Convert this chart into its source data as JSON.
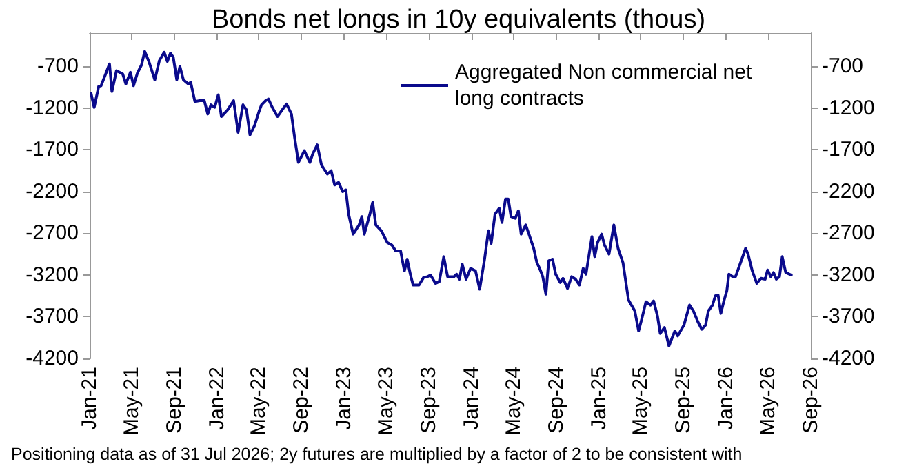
{
  "chart_data": {
    "type": "line",
    "title": "Bonds net longs in 10y equivalents (thous)",
    "annotations": [
      "Positioning data as of 31 Jul 2026; 2y futures are multiplied by a factor of 2 to be consistent with"
    ],
    "x": [
      "2021-01-05",
      "2021-01-14",
      "2021-01-27",
      "2021-02-03",
      "2021-02-17",
      "2021-02-27",
      "2021-03-06",
      "2021-03-19",
      "2021-04-06",
      "2021-04-15",
      "2021-04-28",
      "2021-05-07",
      "2021-05-18",
      "2021-05-30",
      "2021-06-08",
      "2021-06-20",
      "2021-07-07",
      "2021-07-20",
      "2021-08-03",
      "2021-08-12",
      "2021-08-21",
      "2021-08-29",
      "2021-09-08",
      "2021-09-17",
      "2021-09-27",
      "2021-10-11",
      "2021-10-18",
      "2021-10-30",
      "2021-11-13",
      "2021-11-26",
      "2021-12-06",
      "2021-12-15",
      "2021-12-26",
      "2022-01-05",
      "2022-01-14",
      "2022-02-01",
      "2022-02-18",
      "2022-03-03",
      "2022-03-17",
      "2022-03-27",
      "2022-04-06",
      "2022-04-19",
      "2022-05-02",
      "2022-05-09",
      "2022-05-21",
      "2022-05-29",
      "2022-06-09",
      "2022-06-24",
      "2022-07-11",
      "2022-07-20",
      "2022-08-03",
      "2022-08-12",
      "2022-08-23",
      "2022-09-09",
      "2022-09-25",
      "2022-10-03",
      "2022-10-16",
      "2022-10-28",
      "2022-11-14",
      "2022-11-25",
      "2022-12-05",
      "2022-12-16",
      "2022-12-28",
      "2023-01-06",
      "2023-01-14",
      "2023-01-27",
      "2023-02-13",
      "2023-02-21",
      "2023-02-28",
      "2023-03-16",
      "2023-03-24",
      "2023-04-02",
      "2023-04-18",
      "2023-05-05",
      "2023-05-18",
      "2023-05-29",
      "2023-06-12",
      "2023-06-23",
      "2023-07-01",
      "2023-07-10",
      "2023-07-18",
      "2023-08-04",
      "2023-08-17",
      "2023-08-28",
      "2023-09-06",
      "2023-09-20",
      "2023-10-01",
      "2023-10-14",
      "2023-10-25",
      "2023-11-12",
      "2023-11-20",
      "2023-11-28",
      "2023-12-06",
      "2023-12-17",
      "2023-12-30",
      "2024-01-13",
      "2024-01-25",
      "2024-02-08",
      "2024-02-19",
      "2024-02-27",
      "2024-03-09",
      "2024-03-21",
      "2024-03-29",
      "2024-04-08",
      "2024-04-16",
      "2024-04-24",
      "2024-05-06",
      "2024-05-15",
      "2024-05-23",
      "2024-06-05",
      "2024-06-16",
      "2024-06-28",
      "2024-07-07",
      "2024-07-15",
      "2024-07-24",
      "2024-08-02",
      "2024-08-10",
      "2024-08-21",
      "2024-08-30",
      "2024-09-12",
      "2024-09-20",
      "2024-10-03",
      "2024-10-15",
      "2024-10-26",
      "2024-11-06",
      "2024-11-17",
      "2024-11-25",
      "2024-12-12",
      "2024-12-20",
      "2024-12-28",
      "2025-01-09",
      "2025-01-17",
      "2025-01-30",
      "2025-02-13",
      "2025-02-25",
      "2025-03-11",
      "2025-03-27",
      "2025-04-14",
      "2025-04-25",
      "2025-05-05",
      "2025-05-16",
      "2025-05-29",
      "2025-06-07",
      "2025-06-18",
      "2025-06-26",
      "2025-07-08",
      "2025-07-21",
      "2025-08-07",
      "2025-08-15",
      "2025-09-02",
      "2025-09-18",
      "2025-09-29",
      "2025-10-12",
      "2025-10-23",
      "2025-11-03",
      "2025-11-11",
      "2025-11-23",
      "2025-12-01",
      "2025-12-09",
      "2025-12-17",
      "2025-12-25",
      "2026-01-03",
      "2026-01-09",
      "2026-01-20",
      "2026-01-28",
      "2026-02-09",
      "2026-02-26",
      "2026-03-05",
      "2026-03-17",
      "2026-03-30",
      "2026-04-11",
      "2026-04-23",
      "2026-04-30",
      "2026-05-09",
      "2026-05-17",
      "2026-05-25",
      "2026-06-03",
      "2026-06-11",
      "2026-06-21",
      "2026-07-07"
    ],
    "series": [
      {
        "name": "Aggregated Non commercial net long contracts",
        "color": "#0a0a8c",
        "values": [
          -1020,
          -1190,
          -940,
          -930,
          -780,
          -670,
          -1000,
          -750,
          -790,
          -910,
          -770,
          -930,
          -780,
          -680,
          -520,
          -640,
          -860,
          -630,
          -530,
          -640,
          -540,
          -590,
          -860,
          -700,
          -860,
          -910,
          -890,
          -1120,
          -1110,
          -1110,
          -1270,
          -1160,
          -1190,
          -1040,
          -1300,
          -1220,
          -1110,
          -1490,
          -1160,
          -1220,
          -1520,
          -1410,
          -1240,
          -1160,
          -1110,
          -1090,
          -1190,
          -1300,
          -1200,
          -1150,
          -1270,
          -1550,
          -1850,
          -1710,
          -1850,
          -1750,
          -1640,
          -1880,
          -1990,
          -1950,
          -2120,
          -2090,
          -2200,
          -2180,
          -2470,
          -2710,
          -2600,
          -2500,
          -2710,
          -2470,
          -2330,
          -2600,
          -2670,
          -2810,
          -2840,
          -2910,
          -2910,
          -3150,
          -3010,
          -3190,
          -3320,
          -3320,
          -3230,
          -3220,
          -3200,
          -3300,
          -3280,
          -2980,
          -3220,
          -3220,
          -3190,
          -3250,
          -3070,
          -3250,
          -3120,
          -3150,
          -3370,
          -3010,
          -2670,
          -2820,
          -2470,
          -2400,
          -2570,
          -2290,
          -2290,
          -2500,
          -2520,
          -2430,
          -2710,
          -2600,
          -2730,
          -2880,
          -3050,
          -3120,
          -3220,
          -3430,
          -3030,
          -3010,
          -3190,
          -3290,
          -3240,
          -3360,
          -3220,
          -3250,
          -3320,
          -3120,
          -3190,
          -2740,
          -2980,
          -2810,
          -2710,
          -2840,
          -2950,
          -2600,
          -2880,
          -3050,
          -3500,
          -3630,
          -3870,
          -3710,
          -3520,
          -3560,
          -3510,
          -3690,
          -3900,
          -3830,
          -4050,
          -3870,
          -3930,
          -3800,
          -3560,
          -3630,
          -3760,
          -3850,
          -3800,
          -3630,
          -3560,
          -3450,
          -3440,
          -3660,
          -3520,
          -3390,
          -3190,
          -3220,
          -3220,
          -3080,
          -2880,
          -2950,
          -3150,
          -3300,
          -3240,
          -3250,
          -3140,
          -3220,
          -3170,
          -3250,
          -3220,
          -2980,
          -3170,
          -3200
        ]
      }
    ],
    "xlim": [
      "2021-01-01",
      "2026-09-01"
    ],
    "xticks": [
      {
        "value": "2021-01-01",
        "label": "Jan-21"
      },
      {
        "value": "2021-05-01",
        "label": "May-21"
      },
      {
        "value": "2021-09-01",
        "label": "Sep-21"
      },
      {
        "value": "2022-01-01",
        "label": "Jan-22"
      },
      {
        "value": "2022-05-01",
        "label": "May-22"
      },
      {
        "value": "2022-09-01",
        "label": "Sep-22"
      },
      {
        "value": "2023-01-01",
        "label": "Jan-23"
      },
      {
        "value": "2023-05-01",
        "label": "May-23"
      },
      {
        "value": "2023-09-01",
        "label": "Sep-23"
      },
      {
        "value": "2024-01-01",
        "label": "Jan-24"
      },
      {
        "value": "2024-05-01",
        "label": "May-24"
      },
      {
        "value": "2024-09-01",
        "label": "Sep-24"
      },
      {
        "value": "2025-01-01",
        "label": "Jan-25"
      },
      {
        "value": "2025-05-01",
        "label": "May-25"
      },
      {
        "value": "2025-09-01",
        "label": "Sep-25"
      },
      {
        "value": "2026-01-01",
        "label": "Jan-26"
      },
      {
        "value": "2026-05-01",
        "label": "May-26"
      },
      {
        "value": "2026-09-01",
        "label": "Sep-26"
      }
    ],
    "ylim": [
      -4200,
      -300
    ],
    "yticks": [
      -4200,
      -3700,
      -3200,
      -2700,
      -2200,
      -1700,
      -1200,
      -700
    ],
    "y2lim": [
      -4200,
      -300
    ],
    "y2ticks": [
      -4200,
      -3700,
      -3200,
      -2700,
      -2200,
      -1700,
      -1200,
      -700
    ],
    "legend": "top right",
    "grid": false,
    "marker": "none",
    "line_style": "solid"
  }
}
